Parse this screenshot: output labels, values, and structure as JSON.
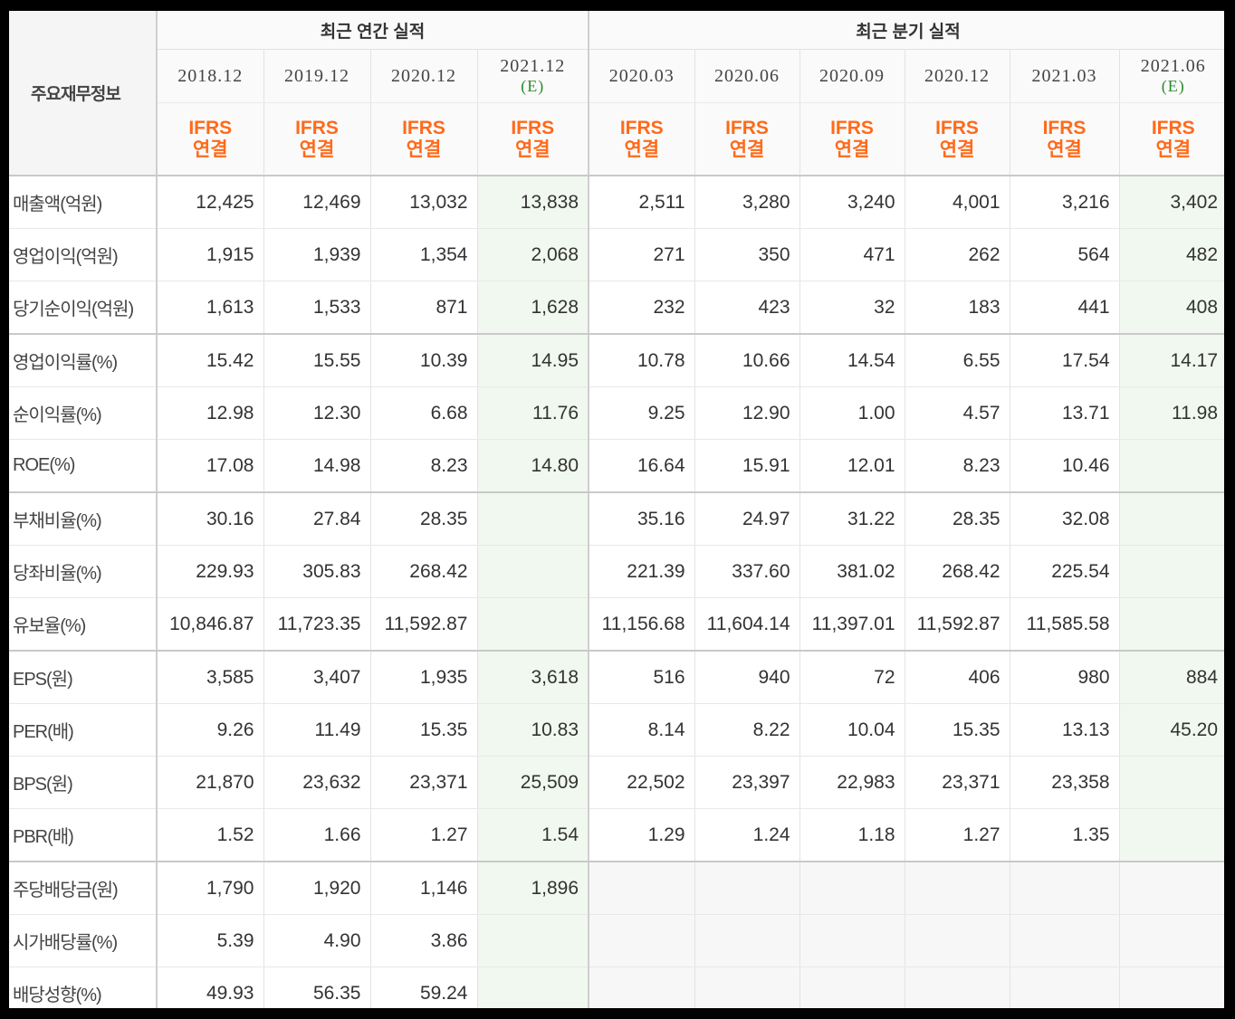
{
  "header": {
    "corner_label": "주요재무정보",
    "annual_title": "최근 연간 실적",
    "quarterly_title": "최근 분기 실적",
    "periods": [
      {
        "date": "2018.12",
        "est": ""
      },
      {
        "date": "2019.12",
        "est": ""
      },
      {
        "date": "2020.12",
        "est": ""
      },
      {
        "date": "2021.12",
        "est": "(E)"
      },
      {
        "date": "2020.03",
        "est": ""
      },
      {
        "date": "2020.06",
        "est": ""
      },
      {
        "date": "2020.09",
        "est": ""
      },
      {
        "date": "2020.12",
        "est": ""
      },
      {
        "date": "2021.03",
        "est": ""
      },
      {
        "date": "2021.06",
        "est": "(E)"
      }
    ],
    "basis_line1": "IFRS",
    "basis_line2": "연결"
  },
  "rows": [
    {
      "label": "매출액(억원)",
      "values": [
        "12,425",
        "12,469",
        "13,032",
        "13,838",
        "2,511",
        "3,280",
        "3,240",
        "4,001",
        "3,216",
        "3,402"
      ]
    },
    {
      "label": "영업이익(억원)",
      "values": [
        "1,915",
        "1,939",
        "1,354",
        "2,068",
        "271",
        "350",
        "471",
        "262",
        "564",
        "482"
      ]
    },
    {
      "label": "당기순이익(억원)",
      "values": [
        "1,613",
        "1,533",
        "871",
        "1,628",
        "232",
        "423",
        "32",
        "183",
        "441",
        "408"
      ]
    },
    {
      "label": "영업이익률(%)",
      "values": [
        "15.42",
        "15.55",
        "10.39",
        "14.95",
        "10.78",
        "10.66",
        "14.54",
        "6.55",
        "17.54",
        "14.17"
      ]
    },
    {
      "label": "순이익률(%)",
      "values": [
        "12.98",
        "12.30",
        "6.68",
        "11.76",
        "9.25",
        "12.90",
        "1.00",
        "4.57",
        "13.71",
        "11.98"
      ]
    },
    {
      "label": "ROE(%)",
      "values": [
        "17.08",
        "14.98",
        "8.23",
        "14.80",
        "16.64",
        "15.91",
        "12.01",
        "8.23",
        "10.46",
        ""
      ]
    },
    {
      "label": "부채비율(%)",
      "values": [
        "30.16",
        "27.84",
        "28.35",
        "",
        "35.16",
        "24.97",
        "31.22",
        "28.35",
        "32.08",
        ""
      ]
    },
    {
      "label": "당좌비율(%)",
      "values": [
        "229.93",
        "305.83",
        "268.42",
        "",
        "221.39",
        "337.60",
        "381.02",
        "268.42",
        "225.54",
        ""
      ]
    },
    {
      "label": "유보율(%)",
      "values": [
        "10,846.87",
        "11,723.35",
        "11,592.87",
        "",
        "11,156.68",
        "11,604.14",
        "11,397.01",
        "11,592.87",
        "11,585.58",
        ""
      ]
    },
    {
      "label": "EPS(원)",
      "values": [
        "3,585",
        "3,407",
        "1,935",
        "3,618",
        "516",
        "940",
        "72",
        "406",
        "980",
        "884"
      ]
    },
    {
      "label": "PER(배)",
      "values": [
        "9.26",
        "11.49",
        "15.35",
        "10.83",
        "8.14",
        "8.22",
        "10.04",
        "15.35",
        "13.13",
        "45.20"
      ]
    },
    {
      "label": "BPS(원)",
      "values": [
        "21,870",
        "23,632",
        "23,371",
        "25,509",
        "22,502",
        "23,397",
        "22,983",
        "23,371",
        "23,358",
        ""
      ]
    },
    {
      "label": "PBR(배)",
      "values": [
        "1.52",
        "1.66",
        "1.27",
        "1.54",
        "1.29",
        "1.24",
        "1.18",
        "1.27",
        "1.35",
        ""
      ]
    },
    {
      "label": "주당배당금(원)",
      "values": [
        "1,790",
        "1,920",
        "1,146",
        "1,896",
        "",
        "",
        "",
        "",
        "",
        ""
      ]
    },
    {
      "label": "시가배당률(%)",
      "values": [
        "5.39",
        "4.90",
        "3.86",
        "",
        "",
        "",
        "",
        "",
        "",
        ""
      ]
    },
    {
      "label": "배당성향(%)",
      "values": [
        "49.93",
        "56.35",
        "59.24",
        "",
        "",
        "",
        "",
        "",
        "",
        ""
      ]
    }
  ]
}
